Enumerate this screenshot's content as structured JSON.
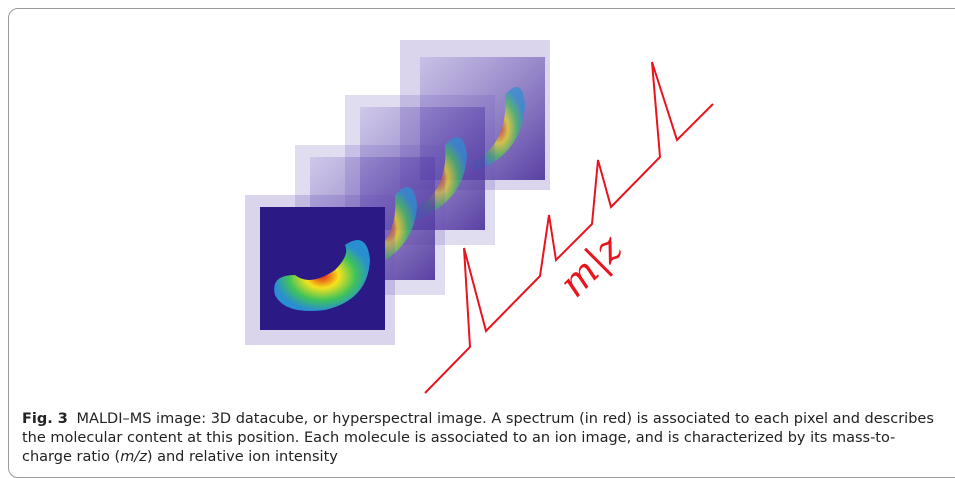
{
  "figure": {
    "axis_label": "m|z",
    "caption": {
      "label": "Fig. 3",
      "text_before": "MALDI–MS image: 3D datacube, or hyperspectral image. A spectrum (in red) is associated to each pixel and describes the molecular content at this position. Each molecule is associated to an ion image, and is characterized by its mass-to-charge ratio (",
      "text_italic": "m/z",
      "text_after": ") and relative ion intensity"
    }
  }
}
